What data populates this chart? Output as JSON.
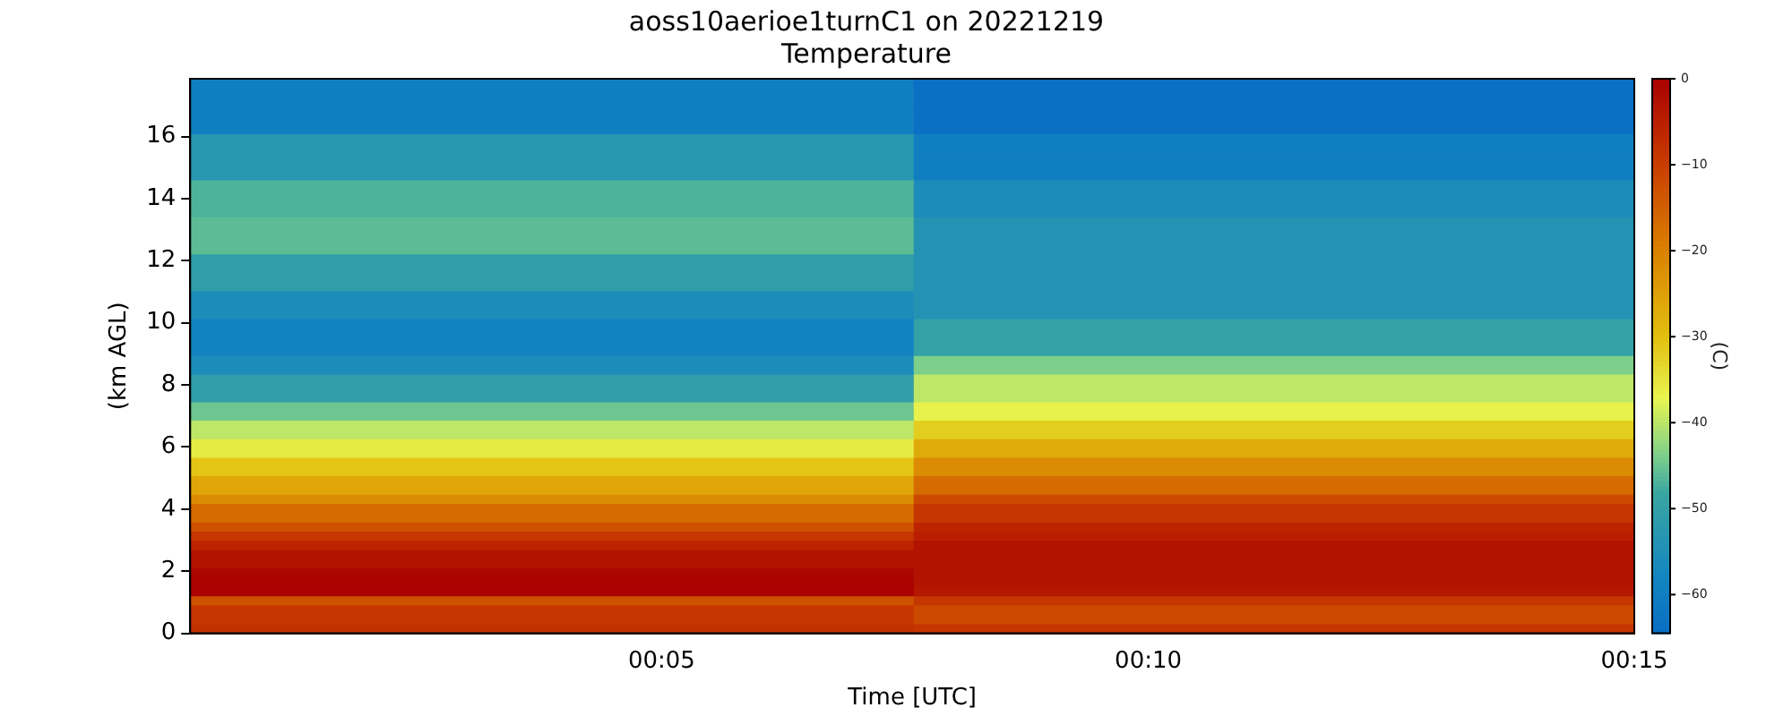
{
  "chart_data": {
    "type": "heatmap",
    "title": "aoss10aerioe1turnC1 on 20221219",
    "subtitle": "Temperature",
    "xlabel": "Time [UTC]",
    "ylabel": "(km AGL)",
    "clabel": "(C)",
    "x": [
      0.0646,
      0.1884
    ],
    "cells": [
      [
        -60,
        -64
      ],
      [
        -60,
        -64
      ],
      [
        -60,
        -64
      ],
      [
        -60,
        -64
      ],
      [
        -60,
        -64
      ],
      [
        -60,
        -64
      ],
      [
        -53,
        -60
      ],
      [
        -53,
        -60
      ],
      [
        -53,
        -60
      ],
      [
        -53,
        -60
      ],
      [
        -53,
        -60
      ],
      [
        -47,
        -56
      ],
      [
        -47,
        -56
      ],
      [
        -47,
        -56
      ],
      [
        -47,
        -56
      ],
      [
        -46,
        -54
      ],
      [
        -46,
        -54
      ],
      [
        -46,
        -54
      ],
      [
        -46,
        -54
      ],
      [
        -51,
        -54
      ],
      [
        -51,
        -54
      ],
      [
        -51,
        -54
      ],
      [
        -51,
        -54
      ],
      [
        -56,
        -54
      ],
      [
        -56,
        -54
      ],
      [
        -56,
        -54
      ],
      [
        -59,
        -50
      ],
      [
        -59,
        -50
      ],
      [
        -59,
        -50
      ],
      [
        -59,
        -50
      ],
      [
        -56,
        -44
      ],
      [
        -56,
        -44
      ],
      [
        -51,
        -40
      ],
      [
        -51,
        -40
      ],
      [
        -51,
        -40
      ],
      [
        -45,
        -37
      ],
      [
        -45,
        -37
      ],
      [
        -40,
        -32
      ],
      [
        -40,
        -32
      ],
      [
        -36,
        -27
      ],
      [
        -36,
        -27
      ],
      [
        -31,
        -22
      ],
      [
        -31,
        -22
      ],
      [
        -26,
        -17
      ],
      [
        -26,
        -17
      ],
      [
        -22,
        -12
      ],
      [
        -17,
        -9
      ],
      [
        -17,
        -9
      ],
      [
        -13,
        -6
      ],
      [
        -9,
        -5
      ],
      [
        -6,
        -3
      ],
      [
        -3,
        -3
      ],
      [
        -3,
        -3
      ],
      [
        -1,
        -3
      ],
      [
        -0.5,
        -3
      ],
      [
        -0.5,
        -4
      ],
      [
        -13,
        -9
      ],
      [
        -9,
        -12
      ],
      [
        -9,
        -12
      ],
      [
        -8,
        -9
      ]
    ],
    "xlim": [
      0.0025,
      0.25
    ],
    "xticks": [
      {
        "value": 0.0833,
        "label": "00:05"
      },
      {
        "value": 0.1667,
        "label": "00:10"
      },
      {
        "value": 0.25,
        "label": "00:15"
      }
    ],
    "ylim": [
      0,
      17.86
    ],
    "yticks": [
      0,
      2,
      4,
      6,
      8,
      10,
      12,
      14,
      16
    ],
    "clim": [
      -64.5,
      0
    ],
    "cticks": [
      -60,
      -50,
      -40,
      -30,
      -20,
      -10,
      0
    ],
    "grid": false,
    "legend": false
  }
}
